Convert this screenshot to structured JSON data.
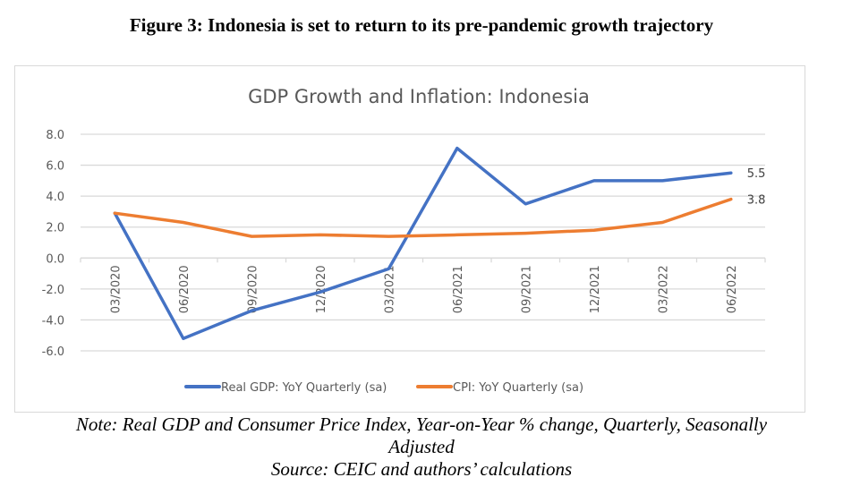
{
  "figure": {
    "title": "Figure 3: Indonesia is set to return to its pre-pandemic growth trajectory",
    "note_line1": "Note: Real GDP and Consumer Price Index, Year-on-Year % change, Quarterly, Seasonally",
    "note_line2": "Adjusted",
    "source": "Source: CEIC and authors’ calculations"
  },
  "colors": {
    "gdp": "#4472c4",
    "cpi": "#ed7d31",
    "grid": "#d9d9d9",
    "text": "#595959"
  },
  "chart_data": {
    "type": "line",
    "title": "GDP Growth and Inflation: Indonesia",
    "xlabel": "",
    "ylabel": "",
    "ylim": [
      -6.0,
      8.0
    ],
    "yticks": [
      "8.0",
      "6.0",
      "4.0",
      "2.0",
      "0.0",
      "-2.0",
      "-4.0",
      "-6.0"
    ],
    "grid": true,
    "legend_position": "bottom",
    "categories": [
      "03/2020",
      "06/2020",
      "09/2020",
      "12/2020",
      "03/2021",
      "06/2021",
      "09/2021",
      "12/2021",
      "03/2022",
      "06/2022"
    ],
    "series": [
      {
        "name": "Real GDP: YoY Quarterly (sa)",
        "color": "#4472c4",
        "values": [
          2.9,
          -5.2,
          -3.4,
          -2.2,
          -0.7,
          7.1,
          3.5,
          5.0,
          5.0,
          5.5
        ],
        "end_label": "5.5"
      },
      {
        "name": "CPI: YoY Quarterly (sa)",
        "color": "#ed7d31",
        "values": [
          2.9,
          2.3,
          1.4,
          1.5,
          1.4,
          1.5,
          1.6,
          1.8,
          2.3,
          3.8
        ],
        "end_label": "3.8"
      }
    ]
  }
}
